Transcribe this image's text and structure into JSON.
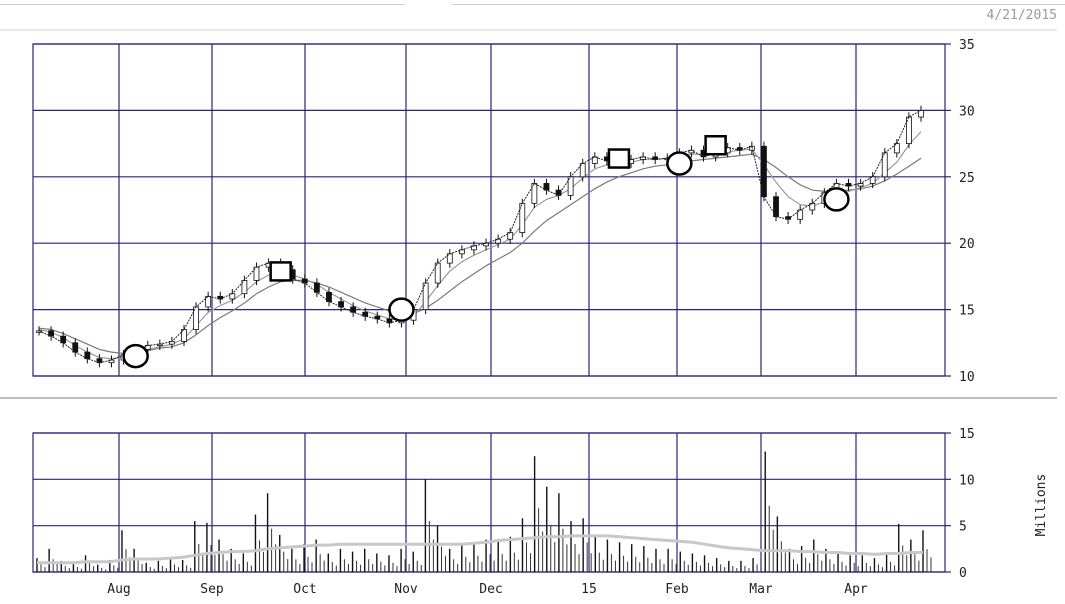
{
  "header": {
    "date": "4/21/2015"
  },
  "chart_data": [
    {
      "type": "line",
      "panel": "price",
      "ylim": [
        10,
        35
      ],
      "yticks": [
        35,
        30,
        25,
        20,
        15,
        10
      ],
      "xtick_labels": [
        "Aug",
        "Sep",
        "Oct",
        "Nov",
        "Dec",
        "15",
        "Feb",
        "Mar",
        "Apr"
      ],
      "grid": true,
      "series": [
        {
          "values": [
            13.4,
            13.0,
            12.5,
            11.8,
            11.3,
            11.0,
            11.2,
            11.6,
            12.0,
            12.3,
            12.4,
            12.6,
            13.5,
            15.2,
            16.0,
            15.8,
            16.2,
            17.2,
            18.2,
            18.5,
            18.0,
            17.3,
            17.0,
            16.3,
            15.6,
            15.2,
            14.8,
            14.5,
            14.3,
            14.0,
            14.2,
            15.0,
            17.0,
            18.5,
            19.2,
            19.5,
            19.8,
            20.0,
            20.3,
            20.8,
            23.0,
            24.5,
            24.0,
            23.6,
            25.0,
            26.0,
            26.5,
            26.2,
            26.0,
            26.3,
            26.5,
            26.3,
            26.4,
            26.8,
            27.0,
            26.5,
            26.8,
            27.2,
            27.0,
            27.3,
            23.5,
            22.0,
            21.8,
            22.5,
            23.0,
            23.8,
            24.5,
            24.3,
            24.5,
            25.0,
            26.8,
            27.5,
            29.5,
            30.0
          ]
        },
        {
          "values": [
            13.5,
            13.3,
            12.9,
            12.3,
            11.8,
            11.4,
            11.3,
            11.4,
            11.7,
            12.0,
            12.2,
            12.4,
            12.8,
            13.8,
            14.8,
            15.3,
            15.7,
            16.3,
            17.1,
            17.6,
            17.8,
            17.6,
            17.3,
            16.9,
            16.3,
            15.8,
            15.3,
            14.9,
            14.6,
            14.3,
            14.2,
            14.5,
            15.6,
            16.8,
            17.9,
            18.6,
            19.1,
            19.5,
            19.9,
            20.3,
            21.4,
            22.7,
            23.3,
            23.6,
            24.1,
            24.9,
            25.6,
            25.9,
            26.0,
            26.1,
            26.3,
            26.3,
            26.4,
            26.5,
            26.7,
            26.7,
            26.7,
            26.9,
            27.0,
            27.1,
            25.9,
            24.6,
            23.5,
            22.9,
            22.8,
            23.1,
            23.6,
            23.9,
            24.2,
            24.5,
            25.3,
            26.1,
            27.4,
            28.4
          ]
        },
        {
          "values": [
            13.6,
            13.5,
            13.2,
            12.8,
            12.4,
            12.0,
            11.8,
            11.7,
            11.8,
            11.9,
            12.1,
            12.2,
            12.5,
            13.1,
            13.8,
            14.4,
            14.9,
            15.5,
            16.2,
            16.7,
            17.1,
            17.2,
            17.2,
            17.0,
            16.7,
            16.3,
            15.9,
            15.5,
            15.2,
            14.9,
            14.7,
            14.7,
            15.1,
            15.7,
            16.4,
            17.1,
            17.7,
            18.3,
            18.8,
            19.3,
            20.0,
            20.9,
            21.7,
            22.3,
            22.9,
            23.5,
            24.1,
            24.6,
            25.0,
            25.3,
            25.6,
            25.8,
            25.9,
            26.0,
            26.2,
            26.3,
            26.4,
            26.5,
            26.6,
            26.7,
            26.3,
            25.7,
            25.0,
            24.4,
            24.0,
            23.9,
            23.9,
            24.0,
            24.1,
            24.3,
            24.7,
            25.2,
            25.8,
            26.4
          ]
        }
      ],
      "markers": [
        {
          "shape": "circle",
          "x_index": 8,
          "y": 11.5
        },
        {
          "shape": "square",
          "x_index": 20,
          "y": 17.8
        },
        {
          "shape": "circle",
          "x_index": 30,
          "y": 15.0
        },
        {
          "shape": "square",
          "x_index": 48,
          "y": 26.3
        },
        {
          "shape": "circle",
          "x_index": 53,
          "y": 26.0
        },
        {
          "shape": "square",
          "x_index": 56,
          "y": 27.3
        },
        {
          "shape": "circle",
          "x_index": 66,
          "y": 23.3
        }
      ]
    },
    {
      "type": "bar",
      "panel": "volume",
      "ylabel": "Millions",
      "ylim": [
        0,
        15
      ],
      "yticks": [
        15,
        10,
        5,
        0
      ],
      "xtick_labels": [
        "Aug",
        "Sep",
        "Oct",
        "Nov",
        "Dec",
        "15",
        "Feb",
        "Mar",
        "Apr"
      ],
      "grid": true,
      "values": [
        1.5,
        2.5,
        1.2,
        1.0,
        1.8,
        0.8,
        1.3,
        4.5,
        2.5,
        1.0,
        1.2,
        1.5,
        1.3,
        5.5,
        5.3,
        3.5,
        2.5,
        2.0,
        6.2,
        8.5,
        4.0,
        2.5,
        3.0,
        3.5,
        2.0,
        2.5,
        2.2,
        2.5,
        2.0,
        1.8,
        2.5,
        2.2,
        10.0,
        5.0,
        2.5,
        3.0,
        3.2,
        3.5,
        3.5,
        3.8,
        5.8,
        12.5,
        9.2,
        8.5,
        5.5,
        5.8,
        3.8,
        3.5,
        3.2,
        3.0,
        2.8,
        2.5,
        2.5,
        2.2,
        2.0,
        1.8,
        1.5,
        1.2,
        1.2,
        1.5,
        13.0,
        6.0,
        2.5,
        2.8,
        3.5,
        2.5,
        2.0,
        1.8,
        1.8,
        1.5,
        2.0,
        5.2,
        3.5,
        4.5
      ],
      "avg_values": [
        1.0,
        1.0,
        1.0,
        1.0,
        1.1,
        1.1,
        1.1,
        1.3,
        1.4,
        1.4,
        1.4,
        1.5,
        1.6,
        1.8,
        2.0,
        2.1,
        2.2,
        2.2,
        2.3,
        2.5,
        2.6,
        2.7,
        2.8,
        2.9,
        2.9,
        3.0,
        3.0,
        3.0,
        3.0,
        3.0,
        3.0,
        3.0,
        3.0,
        3.0,
        3.0,
        3.0,
        3.1,
        3.2,
        3.4,
        3.5,
        3.6,
        3.7,
        3.8,
        3.8,
        3.9,
        3.9,
        3.9,
        3.9,
        3.8,
        3.7,
        3.6,
        3.5,
        3.4,
        3.3,
        3.2,
        3.0,
        2.8,
        2.6,
        2.5,
        2.4,
        2.3,
        2.3,
        2.3,
        2.2,
        2.2,
        2.1,
        2.1,
        2.0,
        2.0,
        1.9,
        2.0,
        2.0,
        2.1,
        2.1
      ]
    }
  ]
}
